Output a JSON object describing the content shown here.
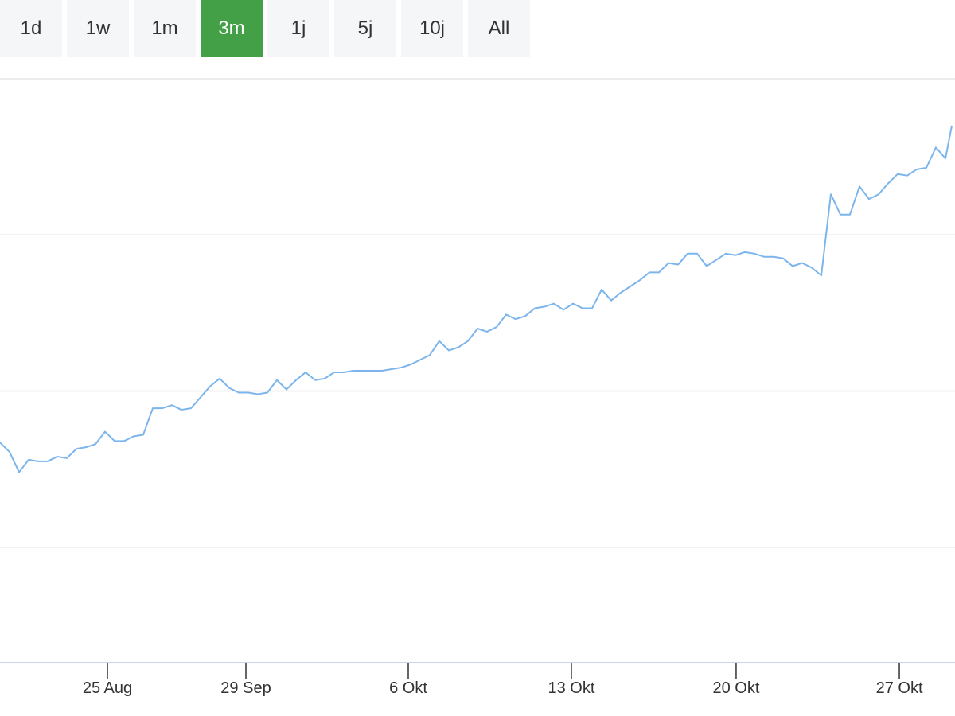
{
  "range_buttons": {
    "labels": [
      "1d",
      "1w",
      "1m",
      "3m",
      "1j",
      "5j",
      "10j",
      "All"
    ],
    "active": 3
  },
  "chart_data": {
    "type": "line",
    "x": [
      0,
      1,
      2,
      3,
      4,
      5,
      6,
      7,
      8,
      9,
      10,
      11,
      12,
      13,
      14,
      15,
      16,
      17,
      18,
      19,
      20,
      21,
      22,
      23,
      24,
      25,
      26,
      27,
      28,
      29,
      30,
      31,
      32,
      33,
      34,
      35,
      36,
      37,
      38,
      39,
      40,
      41,
      42,
      43,
      44,
      45,
      46,
      47,
      48,
      49,
      50,
      51,
      52,
      53,
      54,
      55,
      56,
      57,
      58,
      59,
      60,
      61,
      62,
      63,
      64,
      65,
      66,
      67,
      68,
      69,
      70,
      71,
      72,
      73,
      74,
      75,
      76,
      77,
      78,
      79,
      80,
      81,
      82,
      83,
      84,
      85,
      86,
      87,
      88,
      89,
      90,
      91,
      92,
      93,
      94,
      95,
      96,
      97,
      98,
      99,
      99.67
    ],
    "series": [
      {
        "color": "#7cb5ec",
        "values": [
          1.67,
          1.61,
          1.48,
          1.56,
          1.55,
          1.55,
          1.58,
          1.57,
          1.63,
          1.64,
          1.66,
          1.74,
          1.68,
          1.68,
          1.71,
          1.72,
          1.89,
          1.89,
          1.91,
          1.88,
          1.89,
          1.96,
          2.03,
          2.08,
          2.02,
          1.99,
          1.99,
          1.98,
          1.99,
          2.07,
          2.01,
          2.07,
          2.12,
          2.07,
          2.08,
          2.12,
          2.12,
          2.13,
          2.13,
          2.13,
          2.13,
          2.14,
          2.15,
          2.17,
          2.2,
          2.23,
          2.32,
          2.26,
          2.28,
          2.32,
          2.4,
          2.38,
          2.41,
          2.49,
          2.46,
          2.48,
          2.53,
          2.54,
          2.56,
          2.52,
          2.56,
          2.53,
          2.53,
          2.65,
          2.58,
          2.63,
          2.67,
          2.71,
          2.76,
          2.76,
          2.82,
          2.81,
          2.88,
          2.88,
          2.8,
          2.84,
          2.88,
          2.87,
          2.89,
          2.88,
          2.86,
          2.86,
          2.85,
          2.8,
          2.82,
          2.79,
          2.74,
          3.26,
          3.13,
          3.13,
          3.31,
          3.23,
          3.26,
          3.33,
          3.39,
          3.38,
          3.42,
          3.43,
          3.56,
          3.49,
          3.7
        ]
      }
    ],
    "xlim": [
      0,
      100
    ],
    "xticks": [
      {
        "value": 11.25,
        "label": "25 Aug"
      },
      {
        "value": 25.75,
        "label": "29 Sep"
      },
      {
        "value": 42.75,
        "label": "6 Okt"
      },
      {
        "value": 59.83,
        "label": "13 Okt"
      },
      {
        "value": 77.08,
        "label": "20 Okt"
      },
      {
        "value": 94.17,
        "label": "27 Okt"
      }
    ],
    "ylim": [
      0.26,
      4
    ],
    "yticks": [
      1,
      2,
      3,
      4
    ],
    "grid": true
  }
}
